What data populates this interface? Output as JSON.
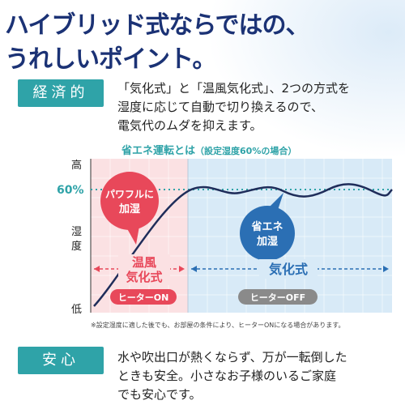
{
  "headline": {
    "line1": "ハイブリッド式ならではの、",
    "line2": "うれしいポイント。"
  },
  "economic": {
    "tag": "経済的",
    "lines": [
      "「気化式」と「温風気化式」、2つの方式を",
      "湿度に応じて自動で切り換えるので、",
      "電気代のムダを抑えます。"
    ]
  },
  "chart": {
    "title": "省エネ運転とは",
    "subtitle": "（設定湿度60%の場合）",
    "y_high": "高",
    "y_60": "60%",
    "y_label_1": "湿",
    "y_label_2": "度",
    "y_low": "低",
    "bubble_red_1": "パワフルに",
    "bubble_red_2": "加湿",
    "bubble_blue_1": "省エネ",
    "bubble_blue_2": "加湿",
    "mode_left_1": "温風",
    "mode_left_2": "気化式",
    "mode_right": "気化式",
    "heater_on": "ヒーターON",
    "heater_off": "ヒーターOFF",
    "colors": {
      "red": "#e8485a",
      "blue": "#2b6fb4",
      "teal": "#2fa3a8",
      "curve": "#1f2d5a",
      "left_bg": "#fbe1e3",
      "right_bg": "#d8eaf7"
    }
  },
  "footnote": "※設定湿度に適した後でも、お部屋の条件により、ヒーターONになる場合があります。",
  "safety": {
    "tag": "安心",
    "lines": [
      "水や吹出口が熱くならず、万が一転倒した",
      "ときも安全。小さなお子様のいるご家庭",
      "でも安心です。"
    ]
  }
}
